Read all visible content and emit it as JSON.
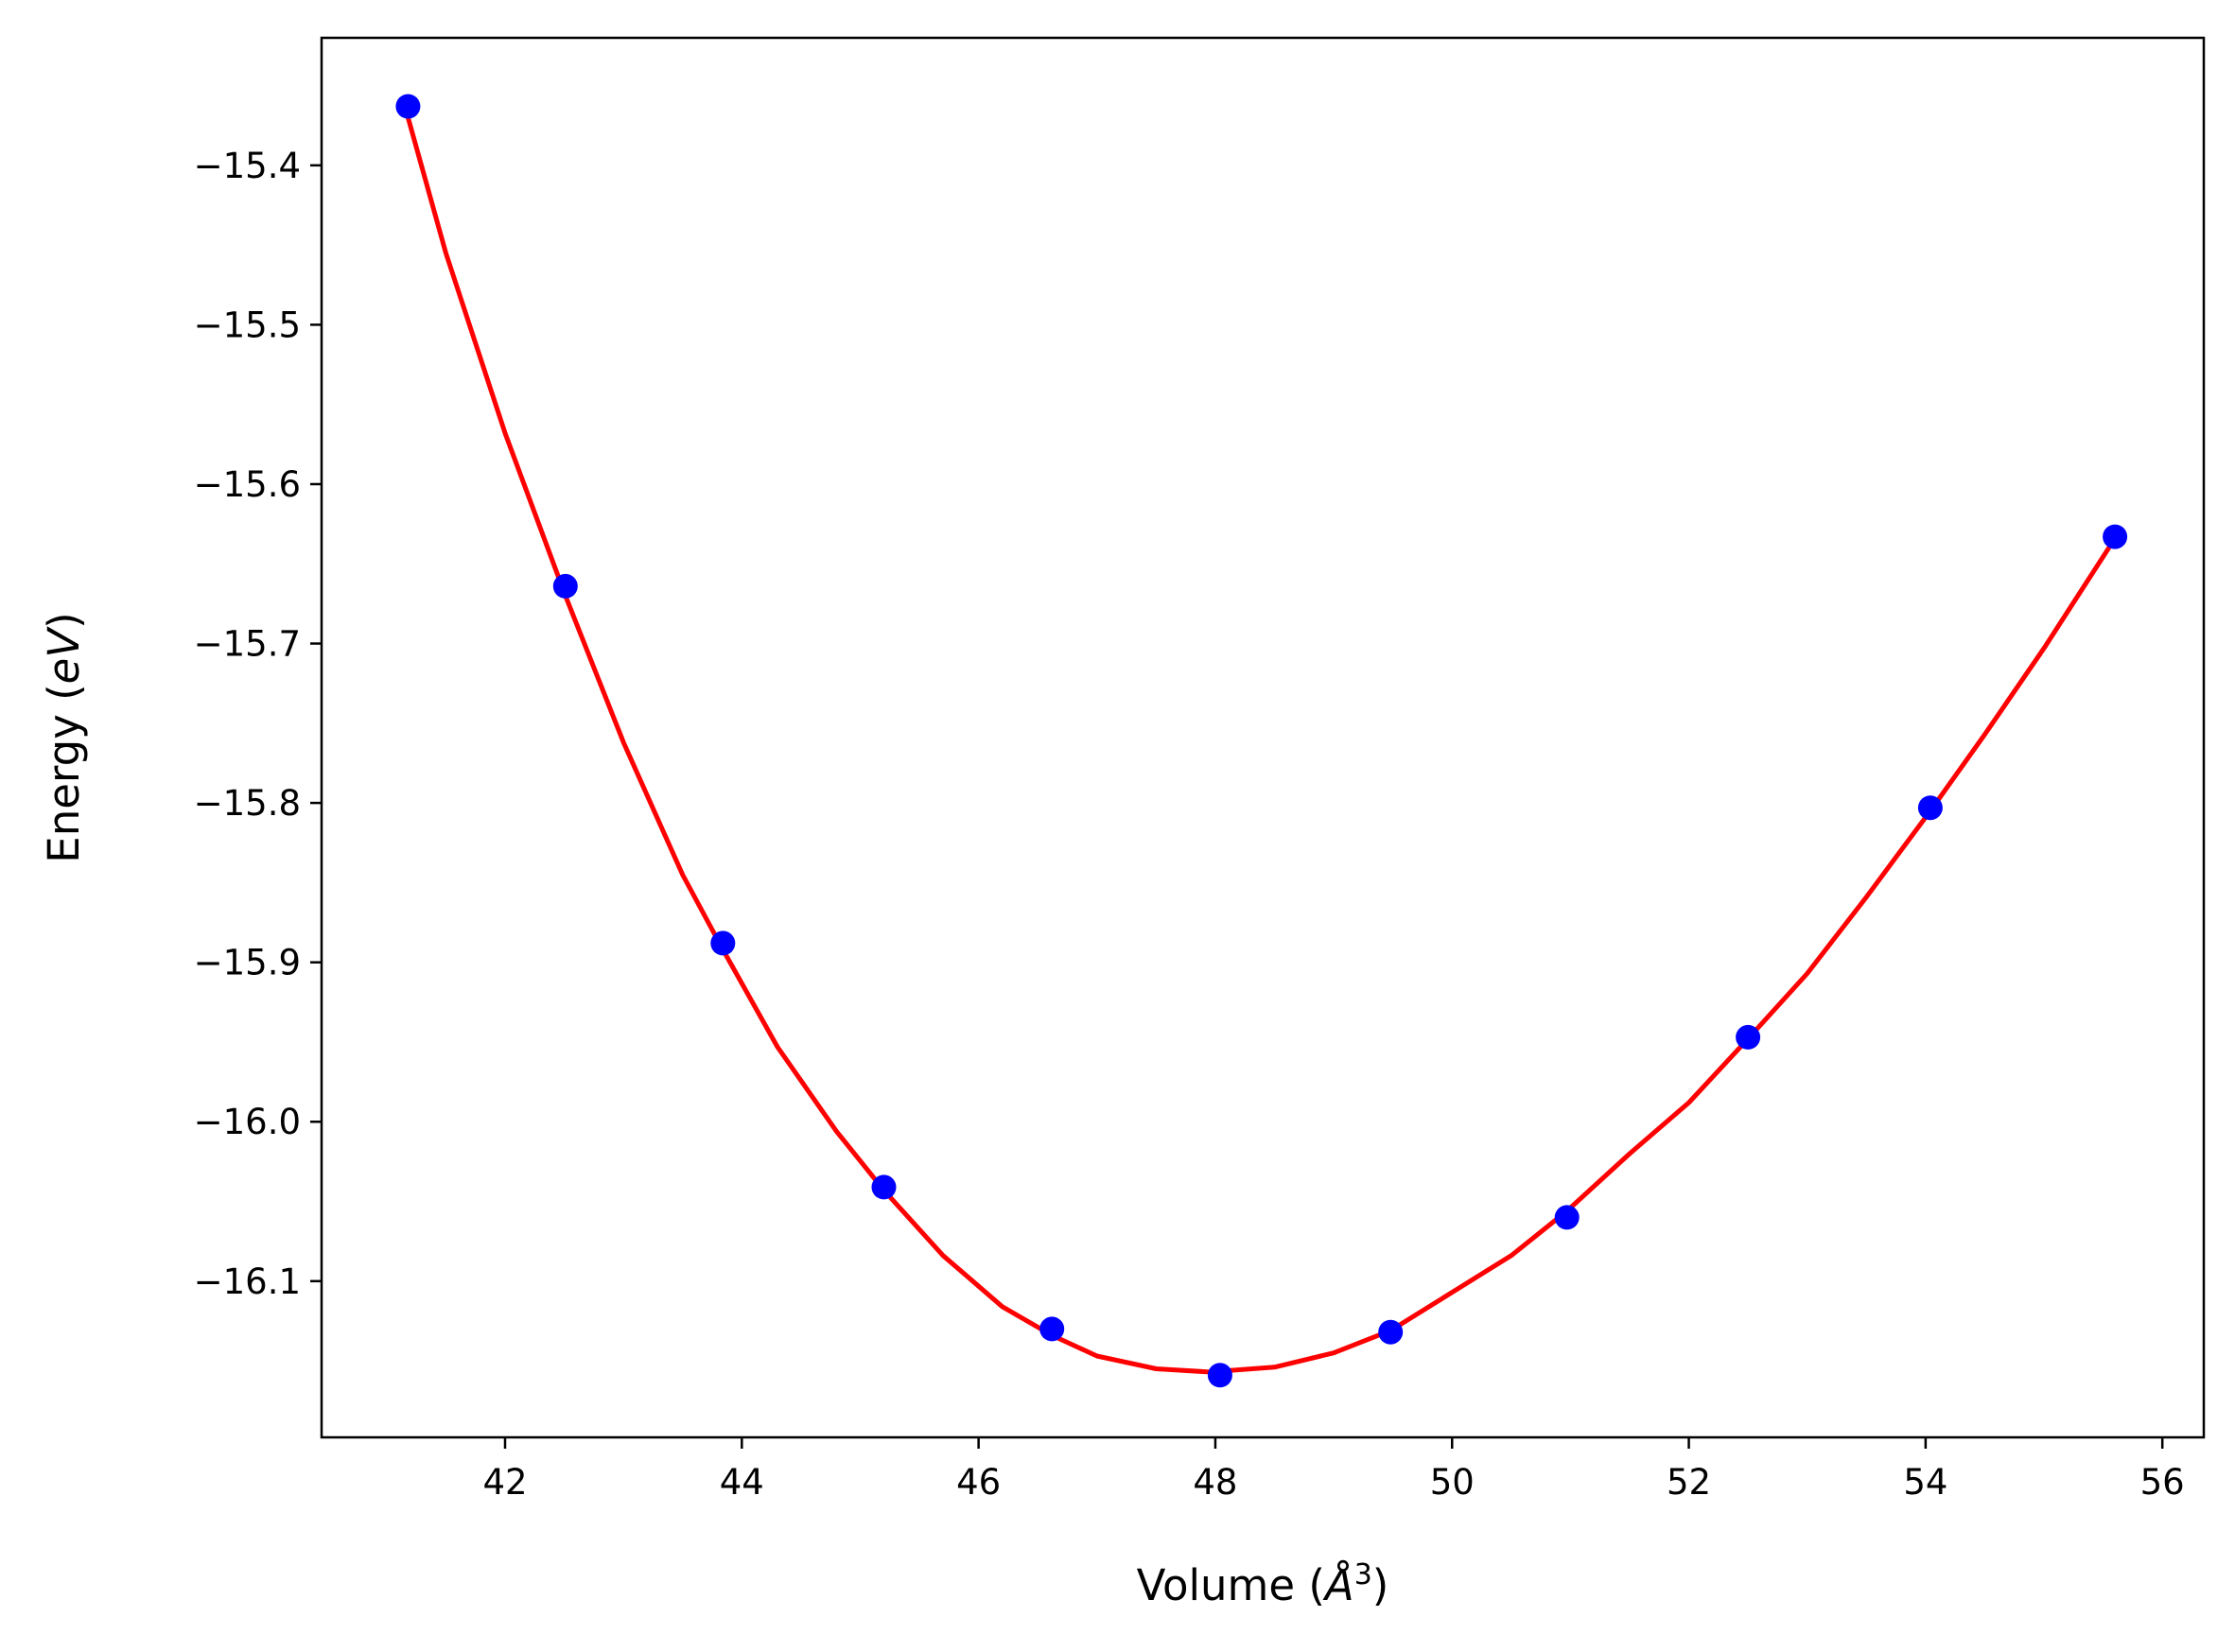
{
  "chart_data": {
    "type": "line",
    "title": "",
    "xlabel": "Volume (",
    "xlabel_symbol": "Å",
    "xlabel_sup": "3",
    "xlabel_close": ")",
    "ylabel": "Energy (",
    "ylabel_unit": "eV",
    "ylabel_close": ")",
    "xlim": [
      40.45,
      56.35
    ],
    "ylim": [
      -16.198,
      -15.32
    ],
    "grid": false,
    "xticks": [
      42,
      44,
      46,
      48,
      50,
      52,
      54,
      56
    ],
    "xtick_labels": [
      "42",
      "44",
      "46",
      "48",
      "50",
      "52",
      "54",
      "56"
    ],
    "yticks": [
      -15.4,
      -15.5,
      -15.6,
      -15.7,
      -15.8,
      -15.9,
      -16.0,
      -16.1
    ],
    "ytick_labels": [
      "−15.4",
      "−15.5",
      "−15.6",
      "−15.7",
      "−15.8",
      "−15.9",
      "−16.0",
      "−16.1"
    ],
    "series": [
      {
        "kind": "scatter",
        "color": "#0000ff",
        "x": [
          41.18,
          42.51,
          43.84,
          45.2,
          46.62,
          48.04,
          49.48,
          50.97,
          52.5,
          54.04,
          55.6
        ],
        "y": [
          -15.363,
          -15.664,
          -15.888,
          -16.041,
          -16.13,
          -16.159,
          -16.132,
          -16.06,
          -15.947,
          -15.803,
          -15.633
        ]
      },
      {
        "kind": "line",
        "color": "#ff0000",
        "x": [
          41.18,
          41.5,
          42.0,
          42.51,
          43.0,
          43.5,
          43.84,
          44.3,
          44.8,
          45.2,
          45.7,
          46.2,
          46.62,
          47.0,
          47.5,
          47.95,
          48.5,
          49.0,
          49.48,
          50.0,
          50.5,
          50.97,
          51.5,
          52.0,
          52.5,
          53.0,
          53.5,
          54.04,
          54.5,
          55.0,
          55.6
        ],
        "y": [
          -15.37,
          -15.455,
          -15.568,
          -15.67,
          -15.762,
          -15.845,
          -15.892,
          -15.953,
          -16.006,
          -16.043,
          -16.084,
          -16.116,
          -16.134,
          -16.147,
          -16.155,
          -16.157,
          -16.154,
          -16.145,
          -16.131,
          -16.107,
          -16.084,
          -16.056,
          -16.02,
          -15.988,
          -15.948,
          -15.907,
          -15.859,
          -15.805,
          -15.757,
          -15.703,
          -15.634
        ]
      }
    ]
  }
}
